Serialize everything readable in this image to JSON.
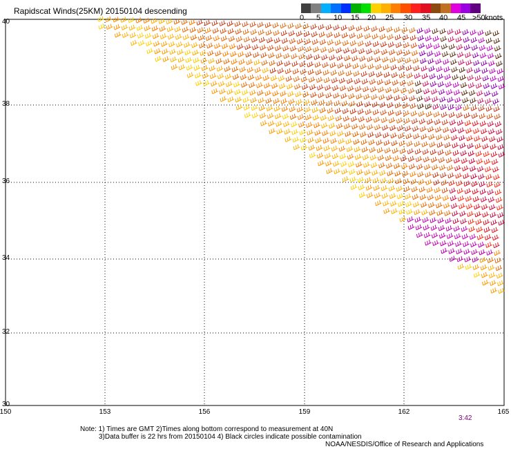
{
  "title": "Rapidscat Winds(25KM) 20150104 descending",
  "legend": {
    "colors": [
      "#404040",
      "#808080",
      "#00b0ff",
      "#0070ff",
      "#0030ff",
      "#00b000",
      "#00e000",
      "#ffd000",
      "#ffb000",
      "#ff8000",
      "#ff5000",
      "#ff2020",
      "#e01020",
      "#8a4a10",
      "#c07020",
      "#e000e0",
      "#9a00e0",
      "#600080"
    ],
    "labels": [
      "0",
      "5",
      "10",
      "15",
      "20",
      "25",
      "30",
      "35",
      "40",
      "45",
      ">50",
      "knots"
    ]
  },
  "map": {
    "lon_range": [
      150,
      165
    ],
    "lat_range": [
      30,
      40
    ],
    "x_ticks": [
      "150",
      "153",
      "156",
      "159",
      "162",
      "165"
    ],
    "y_ticks": [
      "40",
      "38",
      "36",
      "34",
      "32",
      "30"
    ],
    "time_label": "3:42"
  },
  "notes": {
    "line1": "Note: 1) Times are GMT 2)Times along bottom correspond to measurement at 40N",
    "line2": "3)Data buffer is 22 hrs from 20150104 4) Black circles indicate possible contamination",
    "line3": "NOAA/NESDIS/Office of Research and Applications"
  }
}
